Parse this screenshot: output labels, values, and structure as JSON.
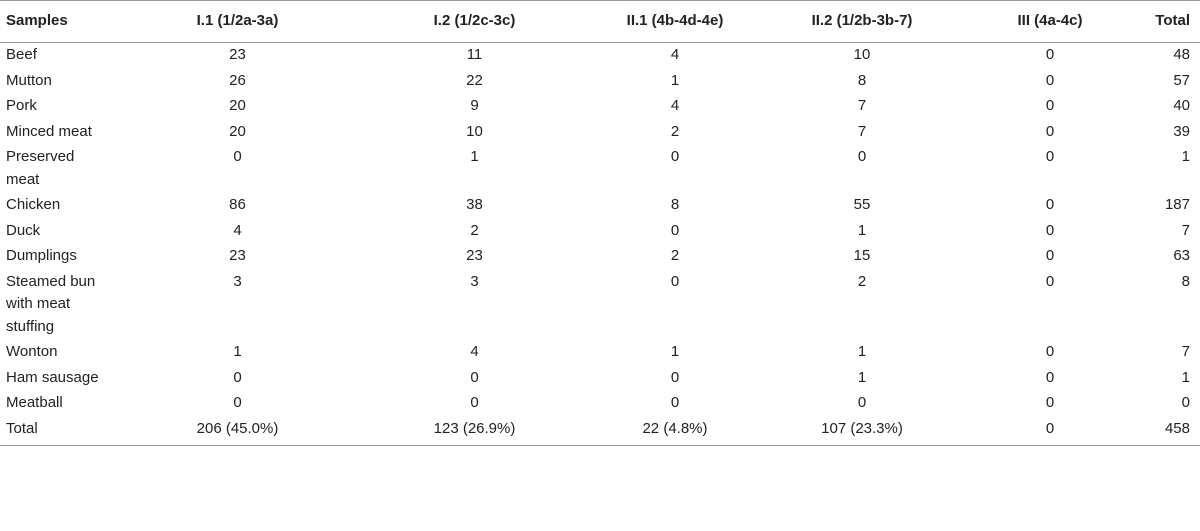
{
  "table": {
    "headers": [
      "Samples",
      "I.1 (1/2a-3a)",
      "I.2 (1/2c-3c)",
      "II.1 (4b-4d-4e)",
      "II.2 (1/2b-3b-7)",
      "III (4a-4c)",
      "Total"
    ],
    "rows": [
      [
        "Beef",
        "23",
        "11",
        "4",
        "10",
        "0",
        "48"
      ],
      [
        "Mutton",
        "26",
        "22",
        "1",
        "8",
        "0",
        "57"
      ],
      [
        "Pork",
        "20",
        "9",
        "4",
        "7",
        "0",
        "40"
      ],
      [
        "Minced meat",
        "20",
        "10",
        "2",
        "7",
        "0",
        "39"
      ],
      [
        "Preserved meat",
        "0",
        "1",
        "0",
        "0",
        "0",
        "1"
      ],
      [
        "Chicken",
        "86",
        "38",
        "8",
        "55",
        "0",
        "187"
      ],
      [
        "Duck",
        "4",
        "2",
        "0",
        "1",
        "0",
        "7"
      ],
      [
        "Dumplings",
        "23",
        "23",
        "2",
        "15",
        "0",
        "63"
      ],
      [
        "Steamed bun with meat stuffing",
        "3",
        "3",
        "0",
        "2",
        "0",
        "8"
      ],
      [
        "Wonton",
        "1",
        "4",
        "1",
        "1",
        "0",
        "7"
      ],
      [
        "Ham sausage",
        "0",
        "0",
        "0",
        "1",
        "0",
        "1"
      ],
      [
        "Meatball",
        "0",
        "0",
        "0",
        "0",
        "0",
        "0"
      ],
      [
        "Total",
        "206 (45.0%)",
        "123 (26.9%)",
        "22 (4.8%)",
        "107 (23.3%)",
        "0",
        "458"
      ]
    ]
  }
}
